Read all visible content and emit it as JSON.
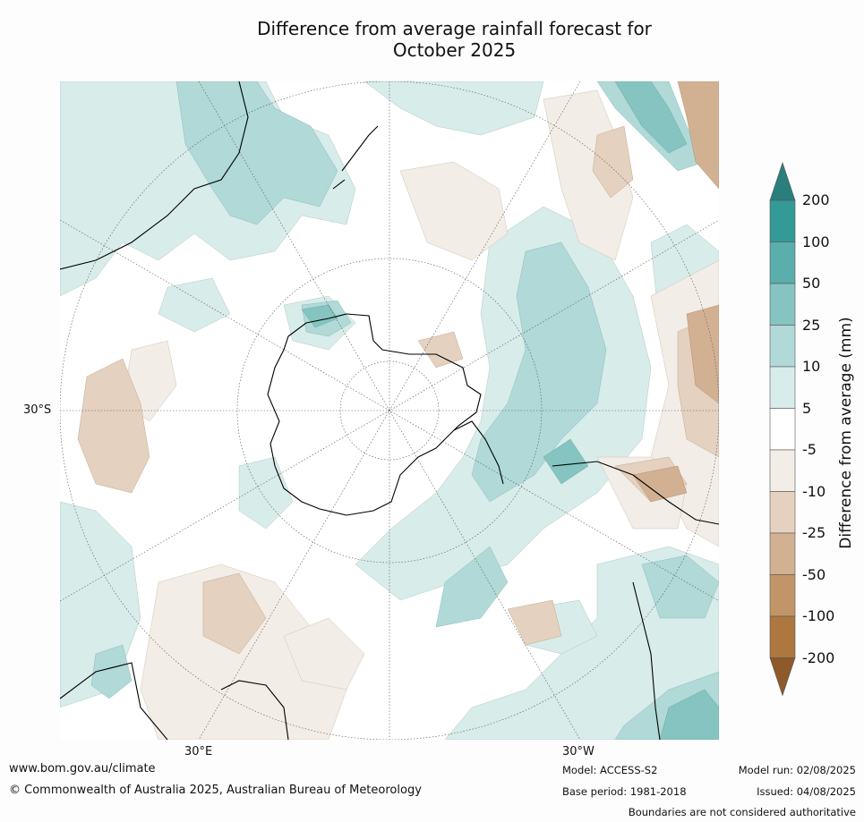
{
  "title": {
    "line1": "Difference from average rainfall forecast for",
    "line2": "October 2025"
  },
  "map": {
    "projection": "south polar stereographic",
    "axis_labels": {
      "lat": "30°S",
      "lon_east": "30°E",
      "lon_west": "30°W"
    }
  },
  "colorbar": {
    "title": "Difference from average (mm)",
    "levels": [
      "200",
      "100",
      "50",
      "25",
      "10",
      "5",
      "-5",
      "-10",
      "-25",
      "-50",
      "-100",
      "-200"
    ],
    "colors": [
      "#2a7e7c",
      "#339a96",
      "#5aaeab",
      "#85c4c1",
      "#b0d9d7",
      "#d8ecea",
      "#ffffff",
      "#f2ede6",
      "#e4d1bf",
      "#d2b193",
      "#c29568",
      "#ad7740",
      "#8e5a2a"
    ]
  },
  "footer": {
    "website": "www.bom.gov.au/climate",
    "copyright": "© Commonwealth of Australia 2025, Australian Bureau of Meteorology",
    "model": "Model: ACCESS-S2",
    "base_period": "Base period: 1981-2018",
    "model_run": "Model run: 02/08/2025",
    "issued": "Issued: 04/08/2025",
    "disclaimer": "Boundaries are not considered authoritative"
  }
}
